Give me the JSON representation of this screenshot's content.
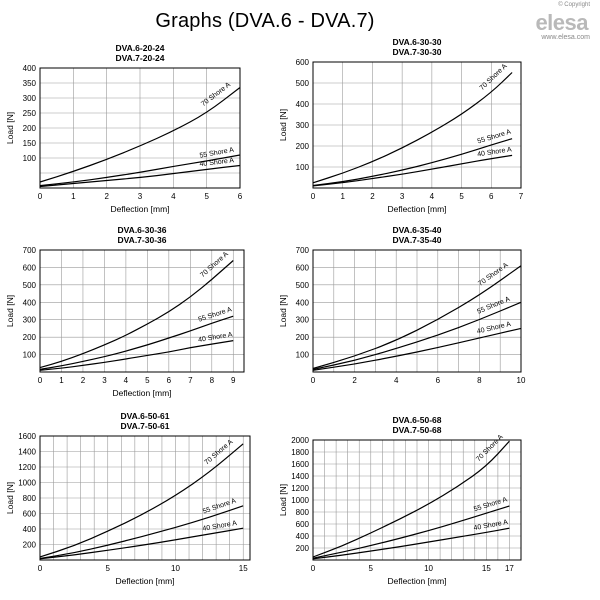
{
  "header": {
    "title": "Graphs (DVA.6 - DVA.7)",
    "copyright": "© Copyright",
    "brand": "elesa",
    "website": "www.elesa.com"
  },
  "chart_data": [
    {
      "type": "line",
      "title": "DVA.6-20-24",
      "subtitle": "DVA.7-20-24",
      "xlabel": "Deflection [mm]",
      "ylabel": "Load [N]",
      "xlim": [
        0,
        6
      ],
      "ylim": [
        0,
        400
      ],
      "xticks": [
        0,
        1,
        2,
        3,
        4,
        5,
        6
      ],
      "yticks": [
        100,
        150,
        200,
        250,
        300,
        350,
        400
      ],
      "grid": true,
      "series": [
        {
          "name": "70 Shore A",
          "x": [
            0,
            1,
            2,
            3,
            4,
            5,
            6
          ],
          "y": [
            20,
            55,
            95,
            140,
            190,
            250,
            335
          ]
        },
        {
          "name": "55 Shore A",
          "x": [
            0,
            1,
            2,
            3,
            4,
            5,
            6
          ],
          "y": [
            8,
            20,
            35,
            52,
            72,
            90,
            110
          ]
        },
        {
          "name": "40 Shore A",
          "x": [
            0,
            1,
            2,
            3,
            4,
            5,
            6
          ],
          "y": [
            5,
            15,
            25,
            35,
            48,
            62,
            75
          ]
        }
      ]
    },
    {
      "type": "line",
      "title": "DVA.6-30-30",
      "subtitle": "DVA.7-30-30",
      "xlabel": "Deflection [mm]",
      "ylabel": "Load [N]",
      "xlim": [
        0,
        7
      ],
      "ylim": [
        0,
        600
      ],
      "xticks": [
        0,
        1,
        2,
        3,
        4,
        5,
        6,
        7
      ],
      "yticks": [
        100,
        200,
        300,
        400,
        500,
        600
      ],
      "grid": true,
      "series": [
        {
          "name": "70 Shore A",
          "x": [
            0,
            1,
            2,
            3,
            4,
            5,
            6,
            6.7
          ],
          "y": [
            25,
            70,
            125,
            190,
            265,
            350,
            455,
            550
          ]
        },
        {
          "name": "55 Shore A",
          "x": [
            0,
            1,
            2,
            3,
            4,
            5,
            6,
            6.7
          ],
          "y": [
            12,
            30,
            55,
            85,
            120,
            160,
            205,
            235
          ]
        },
        {
          "name": "40 Shore A",
          "x": [
            0,
            1,
            2,
            3,
            4,
            5,
            6,
            6.7
          ],
          "y": [
            10,
            25,
            45,
            65,
            90,
            115,
            140,
            155
          ]
        }
      ]
    },
    {
      "type": "line",
      "title": "DVA.6-30-36",
      "subtitle": "DVA.7-30-36",
      "xlabel": "Deflection [mm]",
      "ylabel": "Load [N]",
      "xlim": [
        0,
        9.5
      ],
      "ylim": [
        0,
        700
      ],
      "xticks": [
        0,
        1,
        2,
        3,
        4,
        5,
        6,
        7,
        8,
        9
      ],
      "yticks": [
        100,
        200,
        300,
        400,
        500,
        600,
        700
      ],
      "grid": true,
      "series": [
        {
          "name": "70 Shore A",
          "x": [
            0,
            1,
            2,
            3,
            4,
            5,
            6,
            7,
            8,
            9
          ],
          "y": [
            25,
            60,
            105,
            155,
            210,
            275,
            345,
            430,
            530,
            640
          ]
        },
        {
          "name": "55 Shore A",
          "x": [
            0,
            1,
            2,
            3,
            4,
            5,
            6,
            7,
            8,
            9
          ],
          "y": [
            15,
            35,
            60,
            88,
            120,
            155,
            195,
            235,
            280,
            320
          ]
        },
        {
          "name": "40 Shore A",
          "x": [
            0,
            1,
            2,
            3,
            4,
            5,
            6,
            7,
            8,
            9
          ],
          "y": [
            10,
            22,
            38,
            55,
            75,
            95,
            115,
            140,
            160,
            180
          ]
        }
      ]
    },
    {
      "type": "line",
      "title": "DVA.6-35-40",
      "subtitle": "DVA.7-35-40",
      "xlabel": "",
      "ylabel": "Load [N]",
      "xlim": [
        0,
        10
      ],
      "ylim": [
        0,
        700
      ],
      "xticks": [
        0,
        2,
        4,
        6,
        8,
        10
      ],
      "yticks": [
        100,
        200,
        300,
        400,
        500,
        600,
        700
      ],
      "grid": true,
      "series": [
        {
          "name": "70 Shore A",
          "x": [
            0,
            2,
            4,
            6,
            8,
            10
          ],
          "y": [
            20,
            90,
            180,
            300,
            440,
            610
          ]
        },
        {
          "name": "55 Shore A",
          "x": [
            0,
            2,
            4,
            6,
            8,
            10
          ],
          "y": [
            15,
            65,
            135,
            210,
            300,
            400
          ]
        },
        {
          "name": "40 Shore A",
          "x": [
            0,
            2,
            4,
            6,
            8,
            10
          ],
          "y": [
            10,
            45,
            90,
            140,
            195,
            250
          ]
        }
      ]
    },
    {
      "type": "line",
      "title": "DVA.6-50-61",
      "subtitle": "DVA.7-50-61",
      "xlabel": "Deflection [mm]",
      "ylabel": "Load [N]",
      "xlim": [
        0,
        15.5
      ],
      "ylim": [
        0,
        1600
      ],
      "xticks": [
        0,
        5,
        10,
        15
      ],
      "yticks": [
        200,
        400,
        600,
        800,
        1000,
        1200,
        1400,
        1600
      ],
      "grid": true,
      "series": [
        {
          "name": "70 Shore A",
          "x": [
            0,
            2.5,
            5,
            7.5,
            10,
            12.5,
            15
          ],
          "y": [
            40,
            180,
            370,
            580,
            830,
            1130,
            1500
          ]
        },
        {
          "name": "55 Shore A",
          "x": [
            0,
            2.5,
            5,
            7.5,
            10,
            12.5,
            15
          ],
          "y": [
            20,
            90,
            190,
            300,
            420,
            550,
            700
          ]
        },
        {
          "name": "40 Shore A",
          "x": [
            0,
            2.5,
            5,
            7.5,
            10,
            12.5,
            15
          ],
          "y": [
            15,
            65,
            125,
            190,
            260,
            335,
            410
          ]
        }
      ]
    },
    {
      "type": "line",
      "title": "DVA.6-50-68",
      "subtitle": "DVA.7-50-68",
      "xlabel": "Deflection [mm]",
      "ylabel": "Load [N]",
      "xlim": [
        0,
        18
      ],
      "ylim": [
        0,
        2000
      ],
      "xticks": [
        0,
        5,
        10,
        15,
        17
      ],
      "yticks": [
        200,
        400,
        600,
        800,
        1000,
        1200,
        1400,
        1600,
        1800,
        2000
      ],
      "grid": true,
      "series": [
        {
          "name": "70 Shore A",
          "x": [
            0,
            2.5,
            5,
            7.5,
            10,
            12.5,
            15,
            17
          ],
          "y": [
            50,
            230,
            450,
            680,
            930,
            1220,
            1560,
            1980
          ]
        },
        {
          "name": "55 Shore A",
          "x": [
            0,
            2.5,
            5,
            7.5,
            10,
            12.5,
            15,
            17
          ],
          "y": [
            30,
            130,
            240,
            360,
            490,
            630,
            780,
            900
          ]
        },
        {
          "name": "40 Shore A",
          "x": [
            0,
            2.5,
            5,
            7.5,
            10,
            12.5,
            15,
            17
          ],
          "y": [
            20,
            80,
            150,
            220,
            300,
            380,
            460,
            530
          ]
        }
      ]
    }
  ]
}
